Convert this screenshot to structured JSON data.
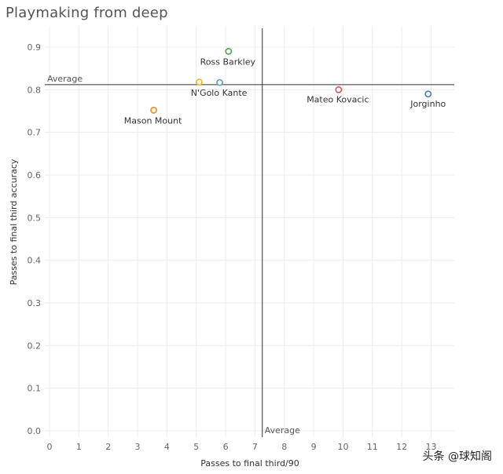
{
  "title": "Playmaking from deep",
  "watermark": "头条 @球知阁",
  "chart_data": {
    "type": "scatter",
    "title": "Playmaking from deep",
    "xlabel": "Passes to final third/90",
    "ylabel": "Passes to final third accuracy",
    "xlim": [
      -0.2,
      13.6
    ],
    "ylim": [
      -0.02,
      0.95
    ],
    "x_ticks": [
      0,
      1,
      2,
      3,
      4,
      5,
      6,
      7,
      8,
      9,
      10,
      11,
      12,
      13
    ],
    "y_ticks": [
      0.0,
      0.1,
      0.2,
      0.3,
      0.4,
      0.5,
      0.6,
      0.7,
      0.8,
      0.9
    ],
    "x_tick_labels": [
      "0",
      "1",
      "2",
      "3",
      "4",
      "5",
      "6",
      "7",
      "8",
      "9",
      "10",
      "11",
      "12",
      "13"
    ],
    "y_tick_labels": [
      "0.0",
      "0.1",
      "0.2",
      "0.3",
      "0.4",
      "0.5",
      "0.6",
      "0.7",
      "0.8",
      "0.9"
    ],
    "grid": true,
    "reference_lines": {
      "x_average": {
        "value": 7.25,
        "label": "Average"
      },
      "y_average": {
        "value": 0.812,
        "label": "Average"
      }
    },
    "points": [
      {
        "name": "Ross Barkley",
        "x": 6.1,
        "y": 0.89,
        "color": "#4aa84a"
      },
      {
        "name": "N'Golo Kante",
        "x": 5.8,
        "y": 0.817,
        "color": "#59a1b5"
      },
      {
        "name": "",
        "x": 5.1,
        "y": 0.818,
        "color": "#f0b429"
      },
      {
        "name": "Mason Mount",
        "x": 3.55,
        "y": 0.752,
        "color": "#f08c1e"
      },
      {
        "name": "Mateo Kovacic",
        "x": 9.85,
        "y": 0.8,
        "color": "#d9534f"
      },
      {
        "name": "Jorginho",
        "x": 12.9,
        "y": 0.79,
        "color": "#4a7fb5"
      }
    ]
  }
}
